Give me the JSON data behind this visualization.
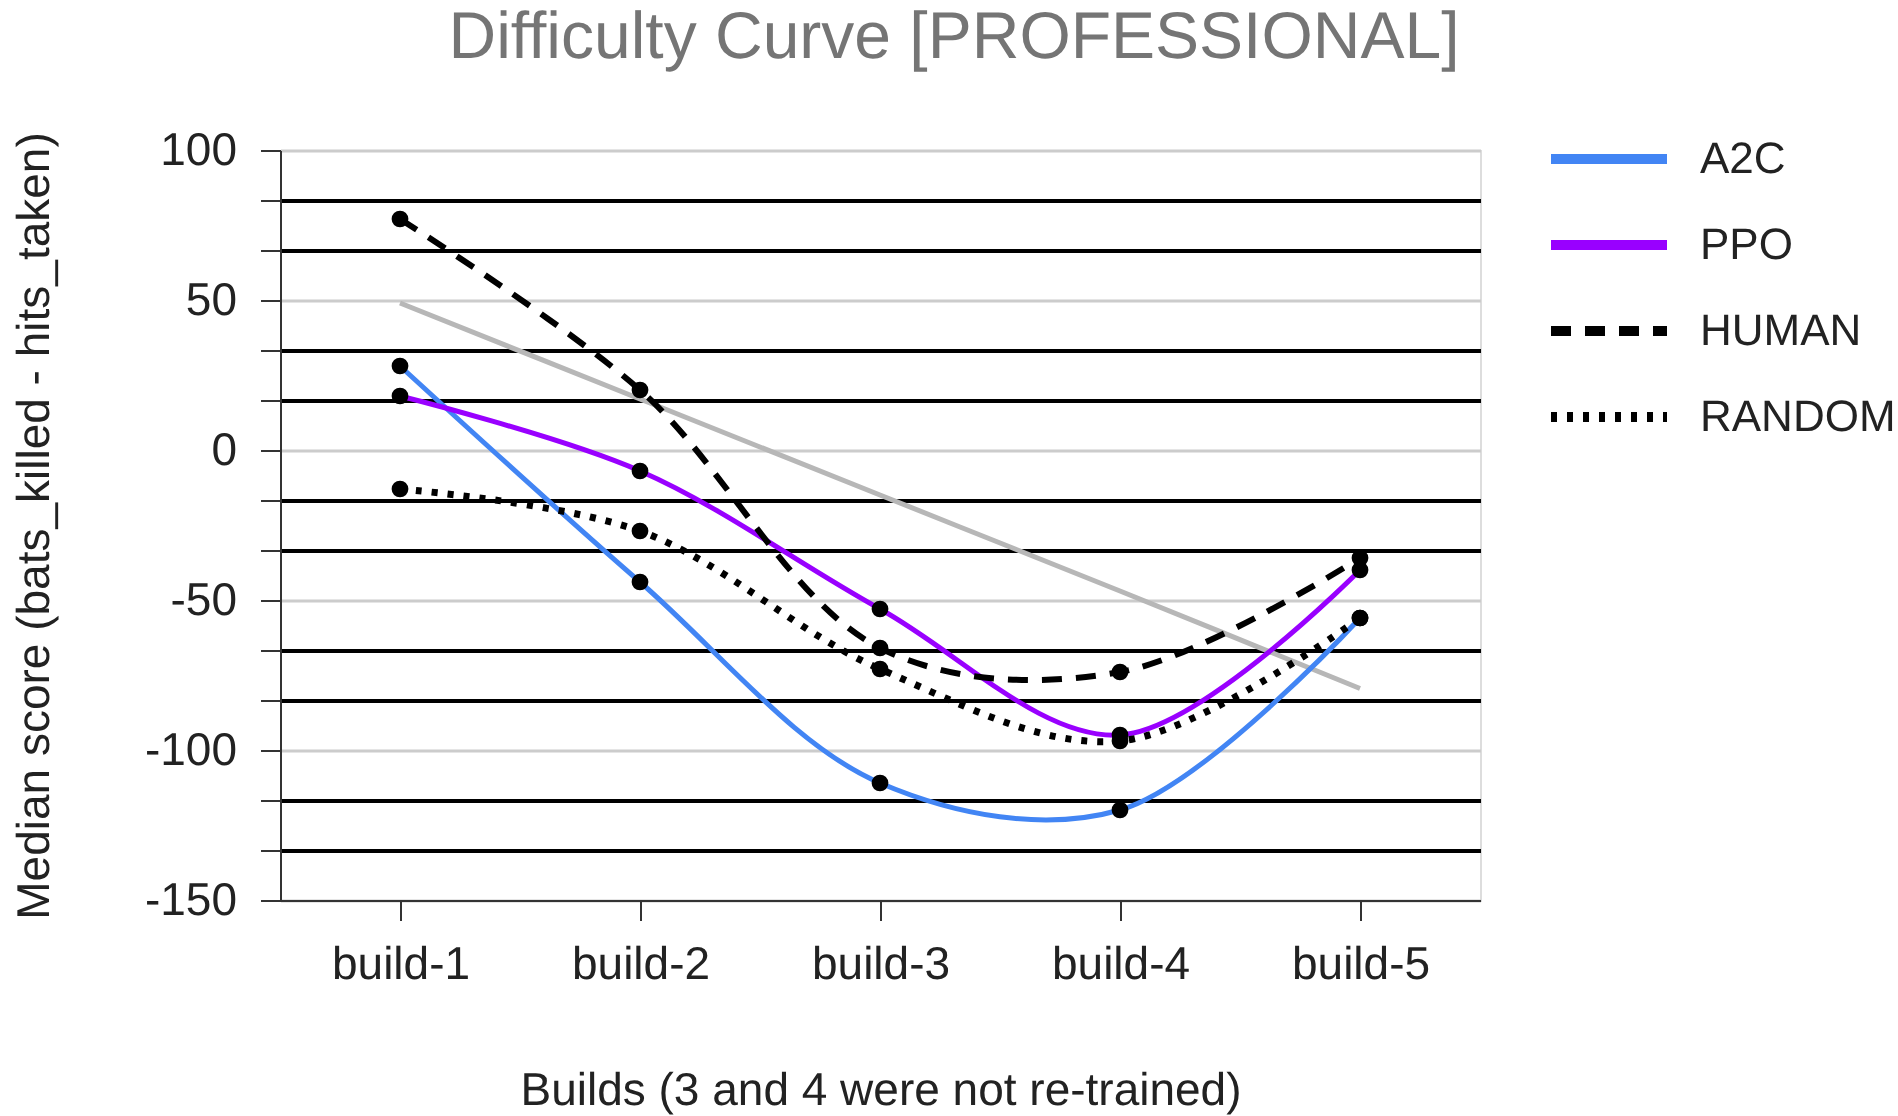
{
  "chart_data": {
    "type": "line",
    "title": "Difficulty Curve [PROFESSIONAL]",
    "xlabel": "Builds (3 and 4 were not re-trained)",
    "ylabel": "Median score (bats_killed - hits_taken)",
    "categories": [
      "build-1",
      "build-2",
      "build-3",
      "build-4",
      "build-5"
    ],
    "ylim": [
      -150,
      100
    ],
    "yticks": [
      100,
      {
        "value": 83.33,
        "label": null
      },
      {
        "value": 66.67,
        "label": null
      },
      50,
      {
        "value": 33.33,
        "label": null
      },
      {
        "value": 16.67,
        "label": null
      },
      0,
      {
        "value": -16.67,
        "label": null
      },
      {
        "value": -33.33,
        "label": null
      },
      -50,
      {
        "value": -66.67,
        "label": null
      },
      {
        "value": -83.33,
        "label": null
      },
      -100,
      {
        "value": -116.67,
        "label": null
      },
      {
        "value": -133.33,
        "label": null
      },
      -150
    ],
    "grid": "y",
    "legend": "top right",
    "marker": "circle",
    "series": [
      {
        "name": "A2C",
        "color": "#4285f4",
        "line_style": "solid",
        "values": [
          28,
          -44,
          -111,
          -120,
          -56
        ]
      },
      {
        "name": "PPO",
        "color": "#9900ff",
        "line_style": "solid",
        "values": [
          18,
          -7,
          -53,
          -95,
          -40
        ]
      },
      {
        "name": "HUMAN",
        "color": "#000000",
        "line_style": "dashed",
        "values": [
          77,
          20,
          -66,
          -74,
          -36
        ]
      },
      {
        "name": "RANDOM",
        "color": "#000000",
        "line_style": "dotted",
        "values": [
          -13,
          -27,
          -73,
          -97,
          -56
        ]
      },
      {
        "type": "line",
        "color": "#b7b7b7",
        "line_style": "solid",
        "marker": "none",
        "values": [
          49,
          17,
          -15,
          -47,
          -79.5
        ]
      }
    ]
  }
}
